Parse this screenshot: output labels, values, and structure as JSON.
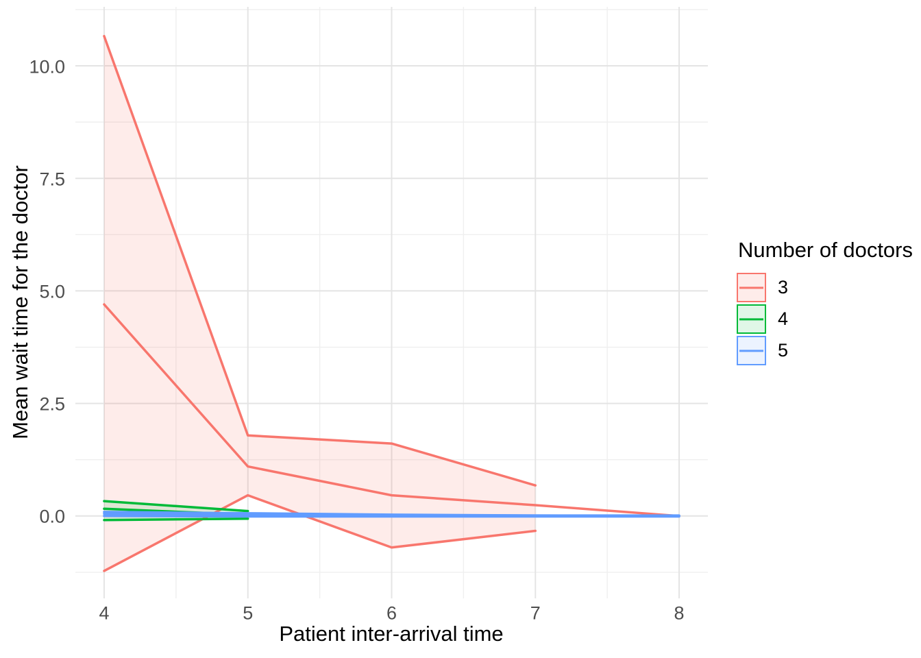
{
  "figure": {
    "background": "#FFFFFF"
  },
  "legend": {
    "title": "Number of doctors",
    "items": [
      {
        "label": "3"
      },
      {
        "label": "4"
      },
      {
        "label": "5"
      }
    ]
  },
  "colors": {
    "axis_text": "#4D4D4D",
    "axis_title": "#000000",
    "grid_major": "#E4E4E4",
    "grid_minor": "#EFEFEF",
    "background": "#FFFFFF"
  },
  "chart_data": {
    "type": "line",
    "title": "",
    "xlabel": "Patient inter-arrival time",
    "ylabel": "Mean wait time for the doctor",
    "x_ticks": [
      4,
      5,
      6,
      7,
      8
    ],
    "x_tick_labels": [
      "4",
      "5",
      "6",
      "7",
      "8"
    ],
    "y_ticks": [
      0.0,
      2.5,
      5.0,
      7.5,
      10.0
    ],
    "y_tick_labels": [
      "0.0",
      "2.5",
      "5.0",
      "7.5",
      "10.0"
    ],
    "xlim": [
      3.8,
      8.2
    ],
    "ylim": [
      -1.83,
      11.31
    ],
    "grid": "major+minor",
    "legend_position": "right",
    "legend_title": "Number of doctors",
    "series": [
      {
        "name": "3",
        "color": "#F8766D",
        "fill": "rgba(248,118,109,0.14)",
        "x": [
          4,
          5,
          6,
          7,
          8
        ],
        "mean": [
          4.7,
          1.1,
          0.46,
          0.24,
          0.0
        ],
        "upper": [
          10.66,
          1.79,
          1.61,
          0.68,
          null
        ],
        "lower": [
          -1.22,
          0.46,
          -0.7,
          -0.33,
          null
        ]
      },
      {
        "name": "4",
        "color": "#00BA38",
        "fill": "rgba(0,186,56,0.12)",
        "x": [
          4,
          5
        ],
        "mean": [
          0.16,
          0.03
        ],
        "upper": [
          0.33,
          0.11
        ],
        "lower": [
          -0.09,
          -0.06
        ]
      },
      {
        "name": "5",
        "color": "#619CFF",
        "fill": "rgba(97,156,255,0.12)",
        "x": [
          4,
          5,
          6,
          7,
          8
        ],
        "mean": [
          0.05,
          0.03,
          0.02,
          0.01,
          0.0
        ],
        "upper": [
          0.09,
          0.06,
          0.03,
          0.01,
          0.01
        ],
        "lower": [
          0.0,
          -0.01,
          -0.01,
          -0.01,
          -0.01
        ]
      }
    ]
  }
}
